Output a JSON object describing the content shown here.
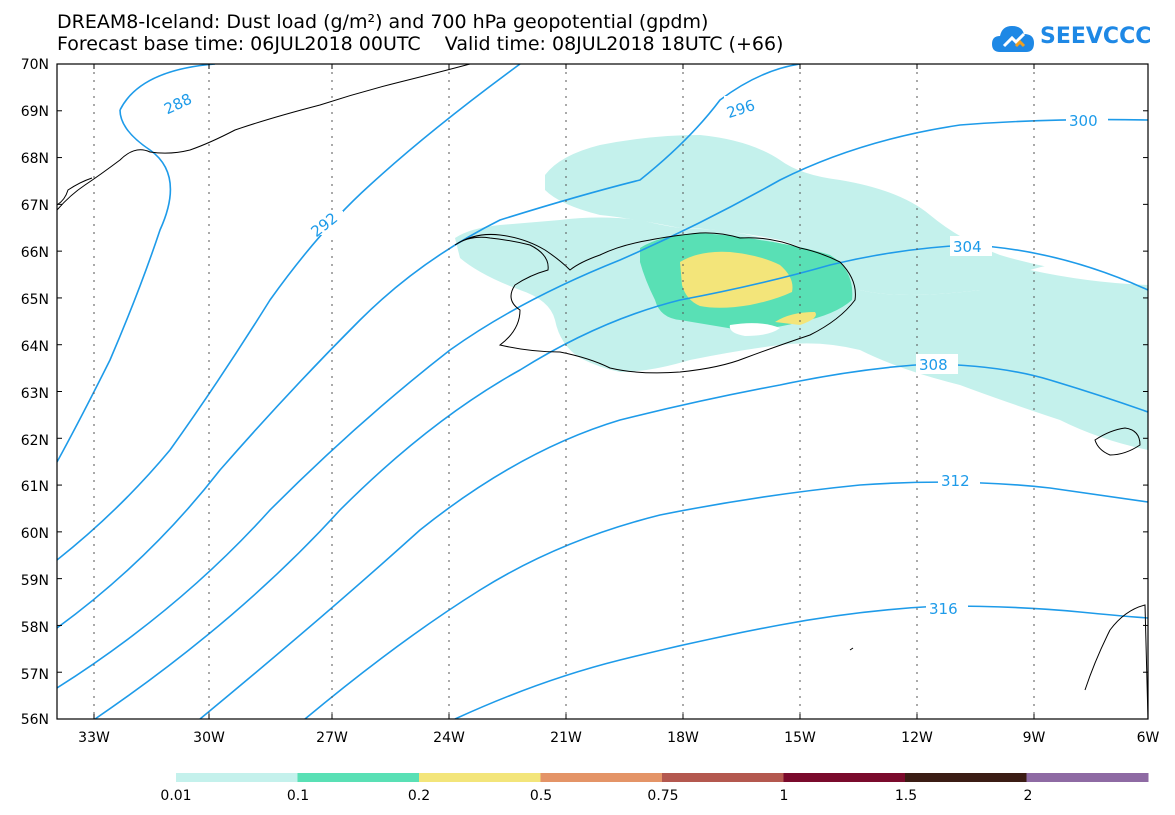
{
  "header": {
    "title_line1": "DREAM8-Iceland: Dust load (g/m²) and 700 hPa geopotential (gpdm)",
    "title_line2": "Forecast base time: 06JUL2018 00UTC    Valid time: 08JUL2018 18UTC (+66)"
  },
  "logo": {
    "text": "SEEVCCC",
    "color": "#1e88e5"
  },
  "map": {
    "lat_labels": [
      "70N",
      "69N",
      "68N",
      "67N",
      "66N",
      "65N",
      "64N",
      "63N",
      "62N",
      "61N",
      "60N",
      "59N",
      "58N",
      "57N",
      "56N"
    ],
    "lon_labels": [
      "33W",
      "30W",
      "27W",
      "24W",
      "21W",
      "18W",
      "15W",
      "12W",
      "9W",
      "6W"
    ],
    "contour_labels": [
      "288",
      "292",
      "296",
      "300",
      "304",
      "308",
      "312",
      "316"
    ],
    "contour_color": "#1e9be9"
  },
  "legend": {
    "colors": [
      "#c4f1ec",
      "#59e0b5",
      "#f3e57a",
      "#e49467",
      "#b4584f",
      "#7a0a2c",
      "#3b1c14",
      "#8e6aa3"
    ],
    "labels": [
      "0.01",
      "0.1",
      "0.2",
      "0.5",
      "0.75",
      "1",
      "1.5",
      "2"
    ]
  }
}
